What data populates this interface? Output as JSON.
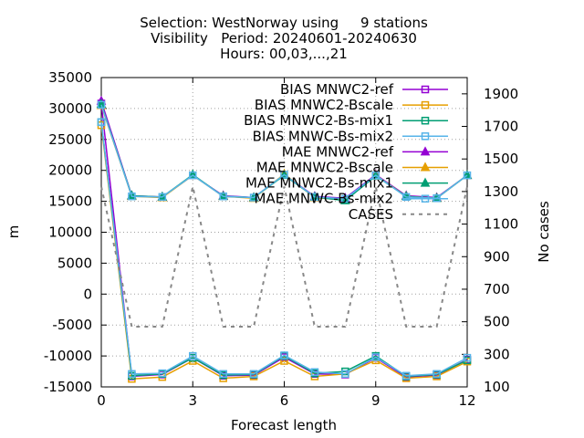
{
  "chart_data": {
    "type": "line",
    "title_lines": [
      "Selection: WestNorway using     9 stations",
      "Visibility   Period: 20240601-20240630",
      "Hours: 00,03,...,21"
    ],
    "xlabel": "Forecast length",
    "ylabel": "m",
    "y2label": "No cases",
    "xlim": [
      0,
      12
    ],
    "ylim": [
      -15000,
      35000
    ],
    "y2lim": [
      100,
      2000
    ],
    "xticks": [
      "0",
      "3",
      "6",
      "9",
      "12"
    ],
    "yticks": [
      "-15000",
      "-10000",
      "-5000",
      "0",
      "5000",
      "10000",
      "15000",
      "20000",
      "25000",
      "30000",
      "35000"
    ],
    "y2ticks": [
      "100",
      "300",
      "500",
      "700",
      "900",
      "1100",
      "1300",
      "1500",
      "1700",
      "1900"
    ],
    "grid": true,
    "legend_position": "top-right",
    "x": [
      0,
      1,
      2,
      3,
      4,
      5,
      6,
      7,
      8,
      9,
      10,
      11,
      12
    ],
    "series": [
      {
        "name": "BIAS MNWC2-ref",
        "color": "#9400d3",
        "marker": "square",
        "axis": "left",
        "values": [
          30800,
          -13300,
          -13000,
          -10300,
          -13200,
          -13100,
          -10200,
          -12900,
          -13000,
          -10300,
          -13400,
          -13100,
          -10600
        ]
      },
      {
        "name": "BIAS MNWC2-Bscale",
        "color": "#e69f00",
        "marker": "square",
        "axis": "left",
        "values": [
          27300,
          -13700,
          -13400,
          -10800,
          -13600,
          -13300,
          -10800,
          -13300,
          -12900,
          -10700,
          -13600,
          -13300,
          -10900
        ]
      },
      {
        "name": "BIAS MNWC2-Bs-mix1",
        "color": "#009e73",
        "marker": "square",
        "axis": "left",
        "values": [
          27800,
          -13200,
          -12900,
          -10300,
          -13100,
          -13000,
          -10000,
          -12800,
          -12500,
          -10000,
          -13300,
          -13000,
          -10700
        ]
      },
      {
        "name": "BIAS MNWC-Bs-mix2",
        "color": "#56b4e9",
        "marker": "square",
        "axis": "left",
        "values": [
          27800,
          -12900,
          -12800,
          -10000,
          -12900,
          -12900,
          -9900,
          -12600,
          -12900,
          -10200,
          -13200,
          -12900,
          -10300
        ]
      },
      {
        "name": "MAE MNWC2-ref",
        "color": "#9400d3",
        "marker": "triangle",
        "axis": "left",
        "values": [
          31200,
          15900,
          15700,
          19200,
          15900,
          15600,
          19300,
          15800,
          15500,
          19300,
          15900,
          15600,
          19200
        ]
      },
      {
        "name": "MAE MNWC2-Bscale",
        "color": "#e69f00",
        "marker": "triangle",
        "axis": "left",
        "values": [
          30500,
          15800,
          15600,
          19200,
          15800,
          15500,
          19400,
          15600,
          15200,
          19200,
          15800,
          15500,
          19200
        ]
      },
      {
        "name": "MAE MNWC2-Bs-mix1",
        "color": "#009e73",
        "marker": "triangle",
        "axis": "left",
        "values": [
          30700,
          15900,
          15700,
          19300,
          15800,
          15600,
          19200,
          15700,
          15100,
          19100,
          15800,
          15500,
          19200
        ]
      },
      {
        "name": "MAE MNWC-Bs-mix2",
        "color": "#56b4e9",
        "marker": "square",
        "axis": "left",
        "values": [
          30600,
          15800,
          15700,
          19200,
          15800,
          15600,
          19300,
          15700,
          15400,
          19200,
          15700,
          15500,
          19200
        ]
      },
      {
        "name": "CASES",
        "color": "#888888",
        "marker": "none",
        "dashed": true,
        "axis": "right",
        "values": [
          1330,
          470,
          470,
          1330,
          470,
          470,
          1330,
          470,
          470,
          1330,
          470,
          470,
          1330
        ]
      }
    ]
  }
}
